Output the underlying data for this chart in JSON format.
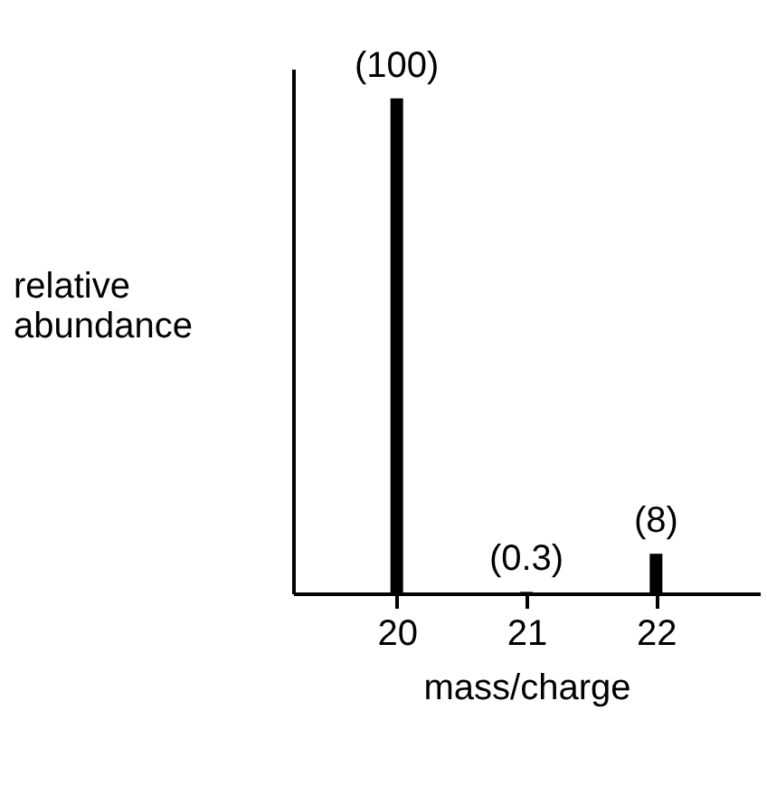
{
  "chart_data": {
    "type": "bar",
    "x": [
      20,
      21,
      22
    ],
    "values": [
      100,
      0.3,
      8
    ],
    "color": "#000000",
    "value_labels": [
      "(100)",
      "(0.3)",
      "(8)"
    ],
    "xlabel": "mass/charge",
    "ylabel": "relative abundance",
    "xlim": [
      19.2,
      22.8
    ],
    "xticks": [
      20,
      21,
      22
    ],
    "tick_labels": "x",
    "grid": false
  }
}
